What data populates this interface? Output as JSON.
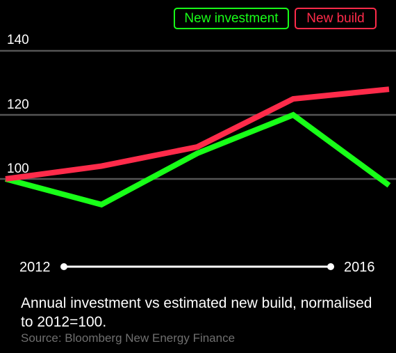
{
  "legend": [
    {
      "label": "New investment",
      "color": "#18ff18"
    },
    {
      "label": "New build",
      "color": "#ff2b4a"
    }
  ],
  "range": {
    "start": "2012",
    "end": "2016"
  },
  "caption": "Annual investment vs estimated new build, normalised to 2012=100.",
  "source": "Source: Bloomberg New Energy Finance",
  "colors": {
    "background": "#000000",
    "gridline": "#555555",
    "source_text": "#6f6f6f"
  },
  "chart_data": {
    "type": "line",
    "x": [
      2012,
      2013,
      2014,
      2015,
      2016
    ],
    "series": [
      {
        "name": "New investment",
        "color": "#18ff18",
        "values": [
          100,
          92,
          108,
          120,
          98
        ]
      },
      {
        "name": "New build",
        "color": "#ff2b4a",
        "values": [
          100,
          104,
          110,
          125,
          128
        ]
      }
    ],
    "y_ticks": [
      "140",
      "120",
      "100"
    ],
    "ylim": [
      60,
      145
    ],
    "grid": true,
    "legend_position": "top-right",
    "title": "",
    "xlabel": "",
    "ylabel": ""
  }
}
